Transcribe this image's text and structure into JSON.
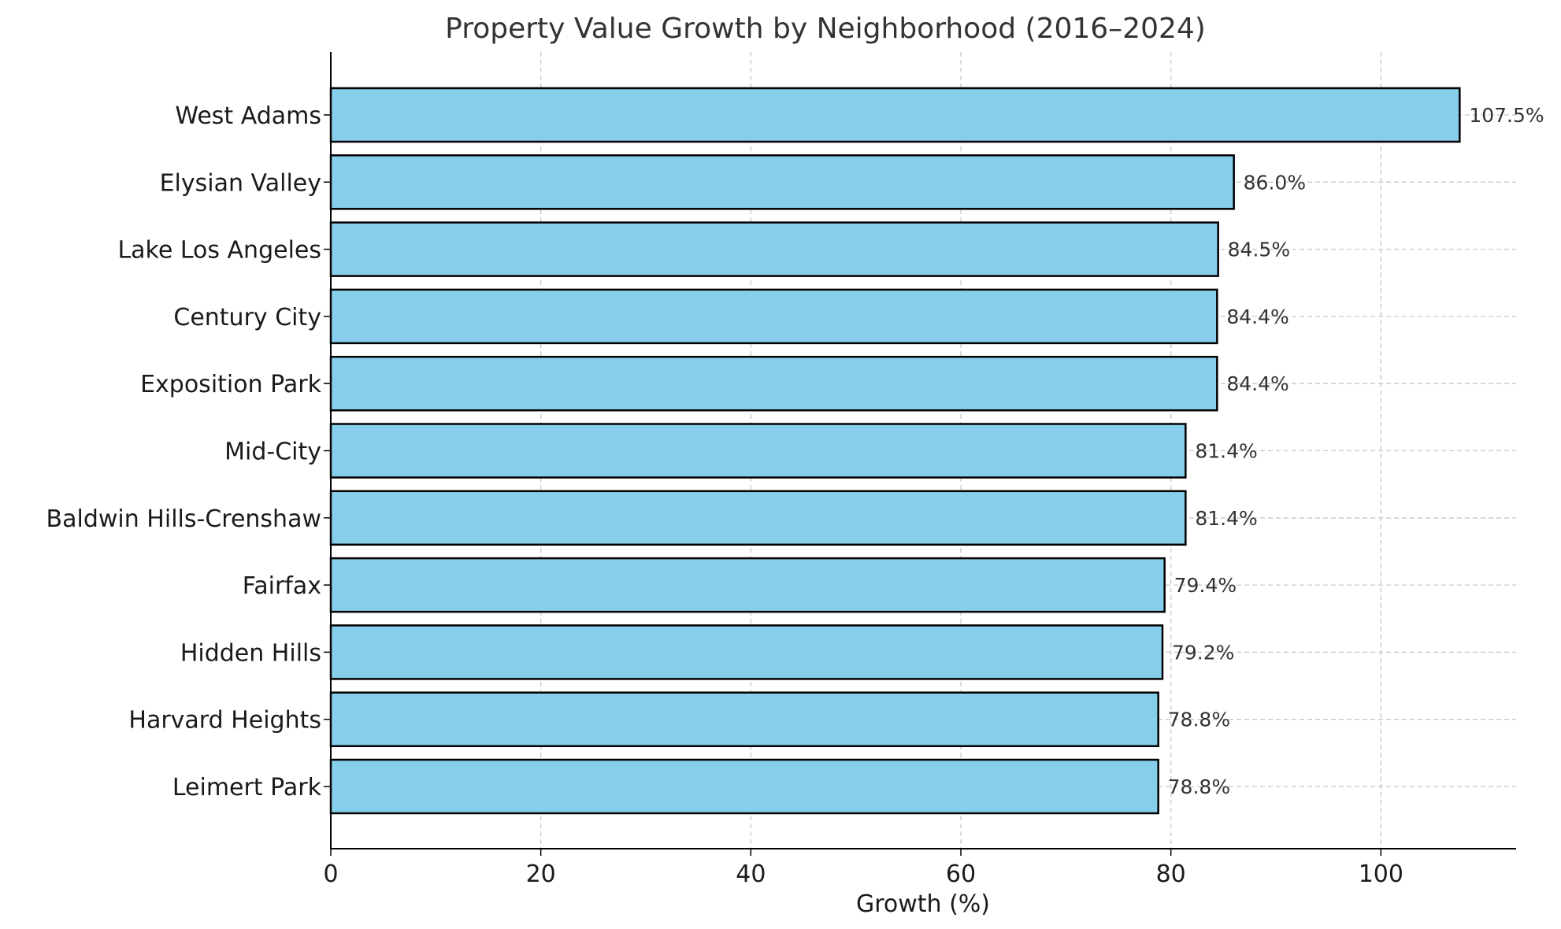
{
  "chart_data": {
    "type": "bar",
    "orientation": "horizontal",
    "title": "Property Value Growth by Neighborhood (2016–2024)",
    "xlabel": "Growth (%)",
    "ylabel": "",
    "xlim": [
      0,
      112.875
    ],
    "xticks": [
      0,
      20,
      40,
      60,
      80,
      100
    ],
    "grid": true,
    "bar_color": "#87ceeb",
    "edge_color": "#000000",
    "categories": [
      "West Adams",
      "Elysian Valley",
      "Lake Los Angeles",
      "Century City",
      "Exposition Park",
      "Mid-City",
      "Baldwin Hills-Crenshaw",
      "Fairfax",
      "Hidden Hills",
      "Harvard Heights",
      "Leimert Park"
    ],
    "values": [
      107.5,
      86.0,
      84.5,
      84.4,
      84.4,
      81.4,
      81.4,
      79.4,
      79.2,
      78.8,
      78.8
    ],
    "data_labels": [
      "107.5%",
      "86.0%",
      "84.5%",
      "84.4%",
      "84.4%",
      "81.4%",
      "81.4%",
      "79.4%",
      "79.2%",
      "78.8%",
      "78.8%"
    ]
  }
}
